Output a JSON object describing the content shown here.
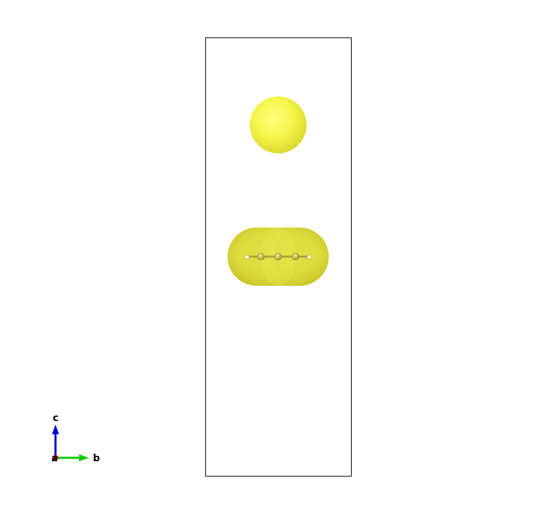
{
  "scene": {
    "background": "#ffffff",
    "cell_outline_color": "#000000",
    "isosurface_color": "#f2f244",
    "isosurface_shadow_color": "#c8c830",
    "bond_color": "#b8b450",
    "end_atom_color": "#ffffcc"
  },
  "axes": {
    "labels": {
      "a": "a",
      "b": "b",
      "c": "c"
    },
    "colors": {
      "a": "#cc0000",
      "b": "#00cc00",
      "c": "#0000cc"
    }
  }
}
